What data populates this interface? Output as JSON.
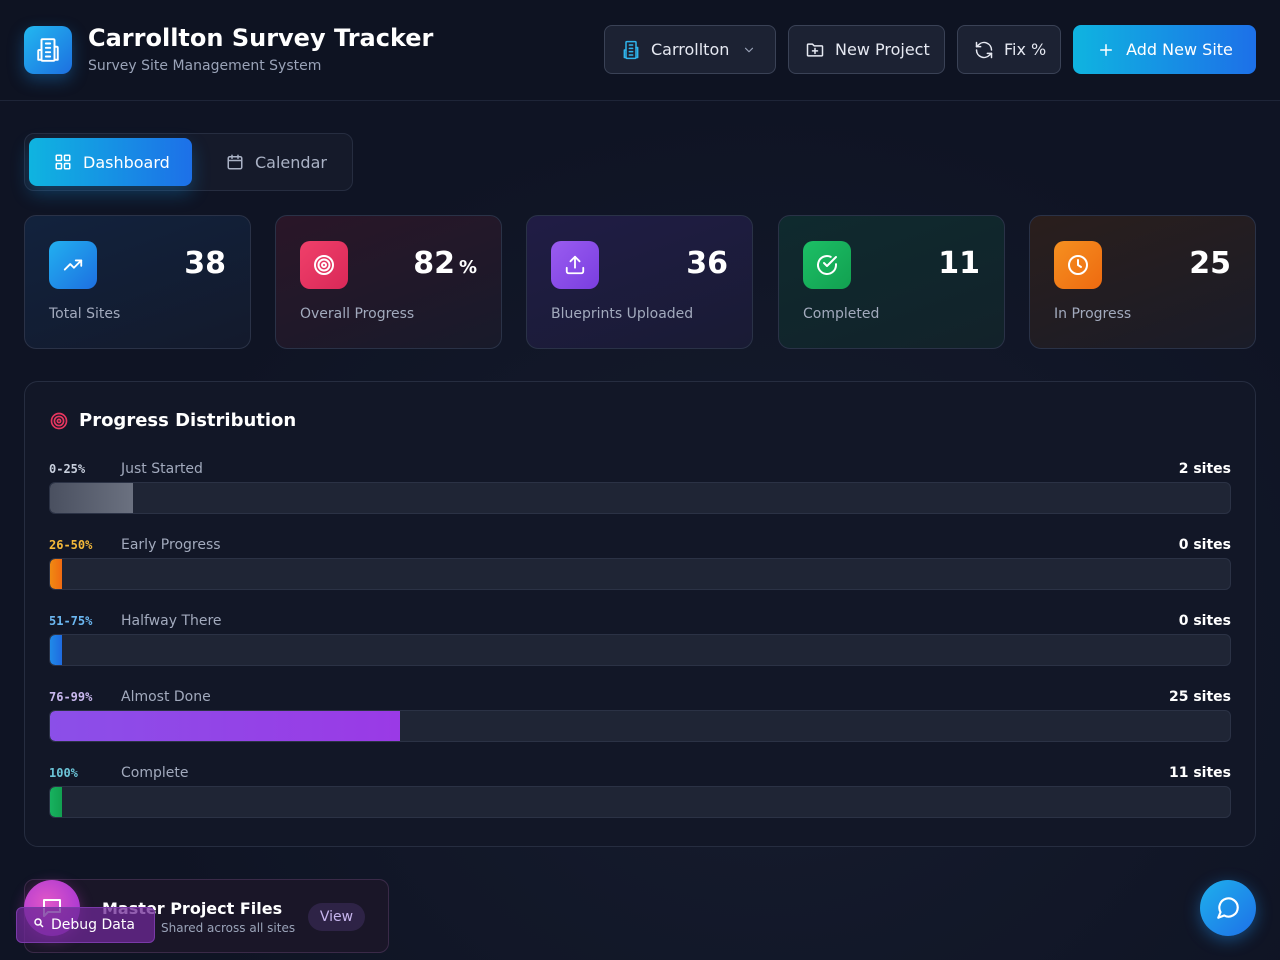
{
  "header": {
    "title": "Carrollton Survey Tracker",
    "subtitle": "Survey Site Management System",
    "city_select": "Carrollton",
    "new_project_label": "New Project",
    "fix_label": "Fix %",
    "add_site_label": "Add New Site"
  },
  "tabs": [
    {
      "label": "Dashboard",
      "active": true
    },
    {
      "label": "Calendar",
      "active": false
    }
  ],
  "stats": [
    {
      "value": "38",
      "unit": "",
      "label": "Total Sites",
      "icon": "trend-up-icon",
      "color": "#1d8fe6"
    },
    {
      "value": "82",
      "unit": "%",
      "label": "Overall Progress",
      "icon": "target-icon",
      "color": "#e8365f"
    },
    {
      "value": "36",
      "unit": "",
      "label": "Blueprints Uploaded",
      "icon": "upload-icon",
      "color": "#8b4fe8"
    },
    {
      "value": "11",
      "unit": "",
      "label": "Completed",
      "icon": "check-circle-icon",
      "color": "#16a85a"
    },
    {
      "value": "25",
      "unit": "",
      "label": "In Progress",
      "icon": "clock-icon",
      "color": "#f07a12"
    }
  ],
  "distribution": {
    "title": "Progress Distribution",
    "rows": [
      {
        "range": "0-25%",
        "label": "Just Started",
        "count": "2 sites",
        "fraction": 0.07,
        "range_color": "#c9d0de",
        "fill_from": "#4a5060",
        "fill_to": "#6b7180"
      },
      {
        "range": "26-50%",
        "label": "Early Progress",
        "count": "0 sites",
        "fraction": 0.0,
        "range_color": "#f5b93a",
        "fill_from": "#f08a12",
        "fill_to": "#f06a12"
      },
      {
        "range": "51-75%",
        "label": "Halfway There",
        "count": "0 sites",
        "fraction": 0.0,
        "range_color": "#6cb8f2",
        "fill_from": "#1f8ae8",
        "fill_to": "#1f6ae0"
      },
      {
        "range": "76-99%",
        "label": "Almost Done",
        "count": "25 sites",
        "fraction": 0.297,
        "range_color": "#c9b8ee",
        "fill_from": "#8b4fe8",
        "fill_to": "#9a3ae6"
      },
      {
        "range": "100%",
        "label": "Complete",
        "count": "11 sites",
        "fraction": 0.0,
        "range_color": "#6cc5d8",
        "fill_from": "#17b25f",
        "fill_to": "#12a050"
      }
    ]
  },
  "files": {
    "title": "Master Project Files",
    "subtitle": "Shared across all sites",
    "view_label": "View"
  },
  "debug_label": "Debug Data"
}
